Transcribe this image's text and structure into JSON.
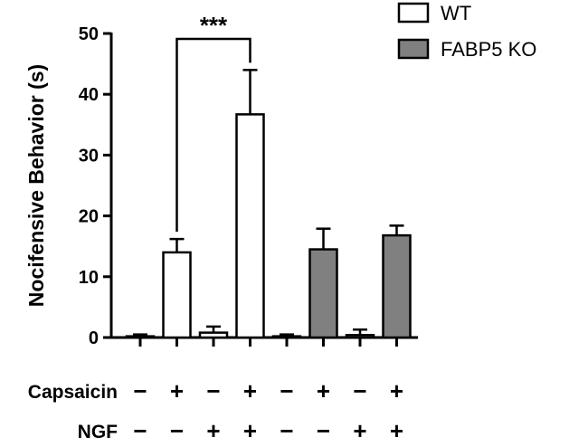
{
  "chart_data": {
    "type": "bar",
    "title": "",
    "xlabel": "",
    "ylabel": "Nocifensive Behavior (s)",
    "ylim": [
      0,
      50
    ],
    "yticks": [
      0,
      10,
      20,
      30,
      40,
      50
    ],
    "grid": false,
    "legend_position": "top-right",
    "series": [
      {
        "name": "WT",
        "color": "#ffffff"
      },
      {
        "name": "FABP5 KO",
        "color": "#808080"
      }
    ],
    "bars": [
      {
        "series": 0,
        "value": 0.2,
        "error": 0.3
      },
      {
        "series": 0,
        "value": 14.0,
        "error": 2.2
      },
      {
        "series": 0,
        "value": 0.8,
        "error": 1.0
      },
      {
        "series": 0,
        "value": 36.7,
        "error": 7.3
      },
      {
        "series": 1,
        "value": 0.2,
        "error": 0.3
      },
      {
        "series": 1,
        "value": 14.5,
        "error": 3.4
      },
      {
        "series": 1,
        "value": 0.4,
        "error": 0.9
      },
      {
        "series": 1,
        "value": 16.8,
        "error": 1.6
      }
    ],
    "treatments": [
      {
        "label": "Capsaicin",
        "signs": [
          "−",
          "+",
          "−",
          "+",
          "−",
          "+",
          "−",
          "+"
        ]
      },
      {
        "label": "NGF",
        "signs": [
          "−",
          "−",
          "+",
          "+",
          "−",
          "−",
          "+",
          "+"
        ]
      }
    ],
    "annotations": [
      {
        "text": "***",
        "from_bar": 1,
        "to_bar": 3
      }
    ]
  }
}
